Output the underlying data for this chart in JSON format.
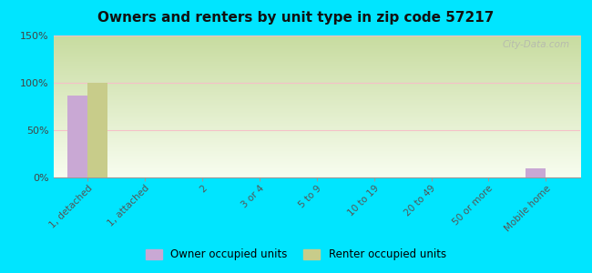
{
  "title": "Owners and renters by unit type in zip code 57217",
  "categories": [
    "1, detached",
    "1, attached",
    "2",
    "3 or 4",
    "5 to 9",
    "10 to 19",
    "20 to 49",
    "50 or more",
    "Mobile home"
  ],
  "owner_values": [
    87,
    0,
    0,
    0,
    0,
    0,
    0,
    0,
    10
  ],
  "renter_values": [
    100,
    0,
    0,
    0,
    0,
    0,
    0,
    0,
    0
  ],
  "owner_color": "#c9a8d4",
  "renter_color": "#c8cc8a",
  "background_color": "#00e5ff",
  "ylim": [
    0,
    150
  ],
  "yticks": [
    0,
    50,
    100,
    150
  ],
  "ytick_labels": [
    "0%",
    "50%",
    "100%",
    "150%"
  ],
  "grid_color": "#f5c0c8",
  "bar_width": 0.35,
  "legend_owner": "Owner occupied units",
  "legend_renter": "Renter occupied units",
  "watermark": "City-Data.com"
}
